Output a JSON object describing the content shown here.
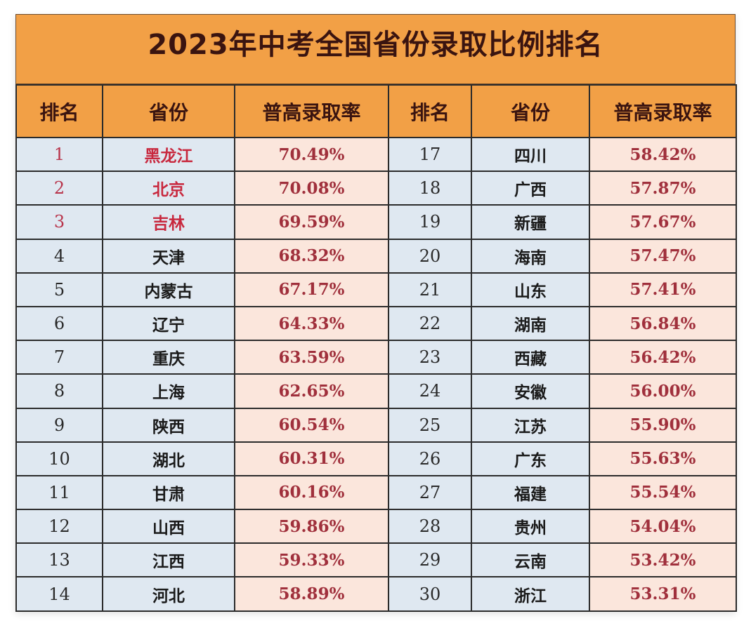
{
  "title": "2023年中考全国省份录取比例排名",
  "headers": {
    "rank": "排名",
    "province": "省份",
    "rate": "普高录取率"
  },
  "colors": {
    "header_bg": "#f2a046",
    "header_text": "#3a1410",
    "rank_province_bg": "#dfe8f1",
    "rate_bg": "#fbe6dc",
    "rate_text": "#a0303c",
    "top3_text": "#c8283e",
    "grid_line": "#2b2b2b"
  },
  "rows": [
    {
      "left": {
        "rank": "1",
        "province": "黑龙江",
        "rate": "70.49%",
        "highlight": true
      },
      "right": {
        "rank": "17",
        "province": "四川",
        "rate": "58.42%"
      }
    },
    {
      "left": {
        "rank": "2",
        "province": "北京",
        "rate": "70.08%",
        "highlight": true
      },
      "right": {
        "rank": "18",
        "province": "广西",
        "rate": "57.87%"
      }
    },
    {
      "left": {
        "rank": "3",
        "province": "吉林",
        "rate": "69.59%",
        "highlight": true
      },
      "right": {
        "rank": "19",
        "province": "新疆",
        "rate": "57.67%"
      }
    },
    {
      "left": {
        "rank": "4",
        "province": "天津",
        "rate": "68.32%"
      },
      "right": {
        "rank": "20",
        "province": "海南",
        "rate": "57.47%"
      }
    },
    {
      "left": {
        "rank": "5",
        "province": "内蒙古",
        "rate": "67.17%"
      },
      "right": {
        "rank": "21",
        "province": "山东",
        "rate": "57.41%"
      }
    },
    {
      "left": {
        "rank": "6",
        "province": "辽宁",
        "rate": "64.33%"
      },
      "right": {
        "rank": "22",
        "province": "湖南",
        "rate": "56.84%"
      }
    },
    {
      "left": {
        "rank": "7",
        "province": "重庆",
        "rate": "63.59%"
      },
      "right": {
        "rank": "23",
        "province": "西藏",
        "rate": "56.42%"
      }
    },
    {
      "left": {
        "rank": "8",
        "province": "上海",
        "rate": "62.65%"
      },
      "right": {
        "rank": "24",
        "province": "安徽",
        "rate": "56.00%"
      }
    },
    {
      "left": {
        "rank": "9",
        "province": "陕西",
        "rate": "60.54%"
      },
      "right": {
        "rank": "25",
        "province": "江苏",
        "rate": "55.90%"
      }
    },
    {
      "left": {
        "rank": "10",
        "province": "湖北",
        "rate": "60.31%"
      },
      "right": {
        "rank": "26",
        "province": "广东",
        "rate": "55.63%"
      }
    },
    {
      "left": {
        "rank": "11",
        "province": "甘肃",
        "rate": "60.16%"
      },
      "right": {
        "rank": "27",
        "province": "福建",
        "rate": "55.54%"
      }
    },
    {
      "left": {
        "rank": "12",
        "province": "山西",
        "rate": "59.86%"
      },
      "right": {
        "rank": "28",
        "province": "贵州",
        "rate": "54.04%"
      }
    },
    {
      "left": {
        "rank": "13",
        "province": "江西",
        "rate": "59.33%"
      },
      "right": {
        "rank": "29",
        "province": "云南",
        "rate": "53.42%"
      }
    },
    {
      "left": {
        "rank": "14",
        "province": "河北",
        "rate": "58.89%"
      },
      "right": {
        "rank": "30",
        "province": "浙江",
        "rate": "53.31%"
      }
    }
  ]
}
